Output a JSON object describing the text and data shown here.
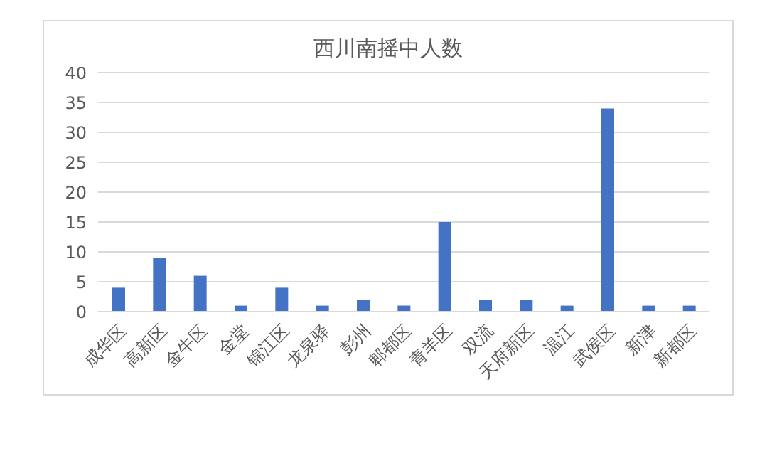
{
  "chart_data": {
    "type": "bar",
    "title": "西川南摇中人数",
    "categories": [
      "成华区",
      "高新区",
      "金牛区",
      "金堂",
      "锦江区",
      "龙泉驿",
      "彭州",
      "郫都区",
      "青羊区",
      "双流",
      "天府新区",
      "温江",
      "武侯区",
      "新津",
      "新都区"
    ],
    "values": [
      4,
      9,
      6,
      1,
      4,
      1,
      2,
      1,
      15,
      2,
      2,
      1,
      34,
      1,
      1
    ],
    "color": "#4472c4",
    "ylim": [
      0,
      40
    ],
    "yticks": [
      0,
      5,
      10,
      15,
      20,
      25,
      30,
      35,
      40
    ],
    "grid": "y",
    "legend": false
  }
}
